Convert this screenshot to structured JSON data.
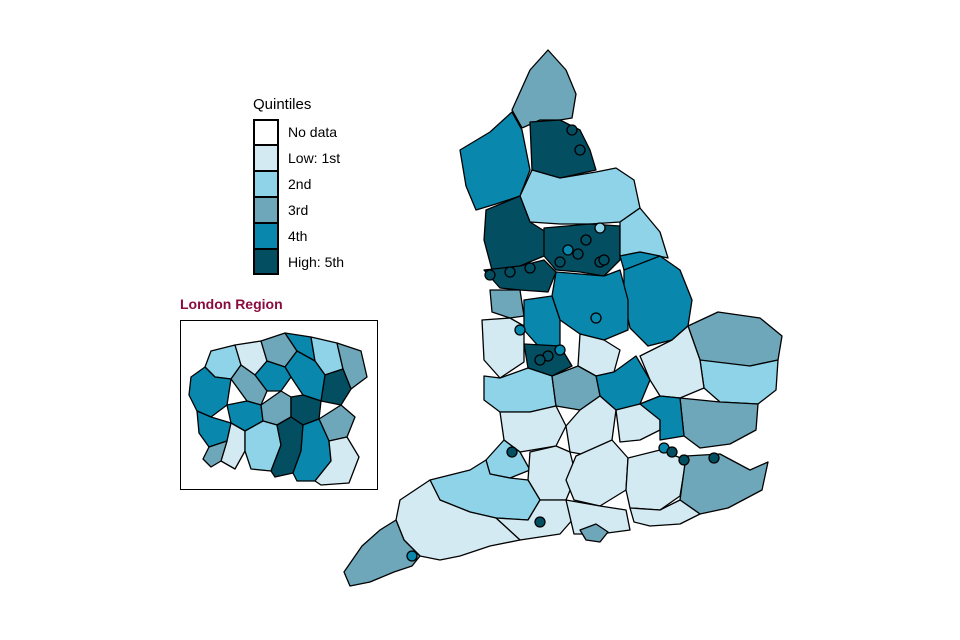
{
  "legend": {
    "title": "Quintiles",
    "items": [
      {
        "label": "No data",
        "color": "#ffffff"
      },
      {
        "label": "Low: 1st",
        "color": "#d3eaf2"
      },
      {
        "label": "2nd",
        "color": "#8fd3e8"
      },
      {
        "label": "3rd",
        "color": "#6ea7ba"
      },
      {
        "label": "4th",
        "color": "#0a87ac"
      },
      {
        "label": "High: 5th",
        "color": "#044e62"
      }
    ]
  },
  "inset": {
    "title": "London Region"
  },
  "colors": {
    "outline": "#000000",
    "inset_title": "#8b0b3f"
  }
}
